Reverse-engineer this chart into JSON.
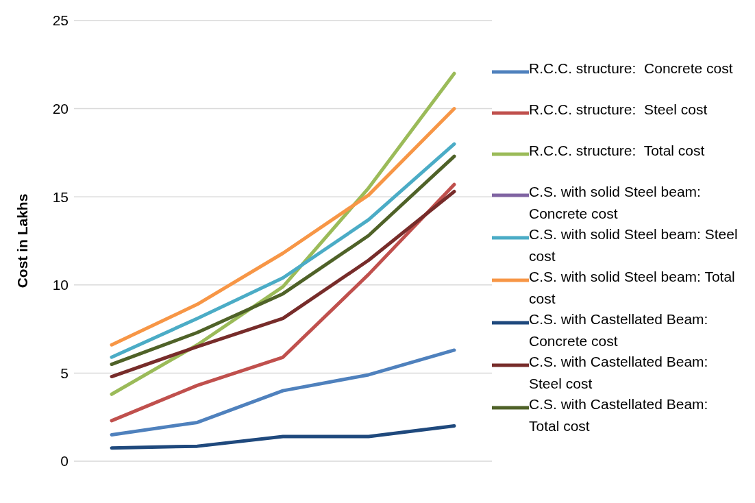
{
  "chart_data": {
    "type": "line",
    "ylabel": "Cost in Lakhs",
    "categories": [
      null,
      null,
      null,
      null,
      null
    ],
    "ylim": [
      0,
      25
    ],
    "yticks": [
      0,
      5,
      10,
      15,
      20,
      25
    ],
    "grid": "y",
    "legend": "right",
    "tick_labels": "y",
    "marker": "none",
    "line_style": "solid",
    "series": [
      {
        "name": "R.C.C. structure:  Concrete cost",
        "color": "#4f81bd",
        "values": [
          1.5,
          2.2,
          4.0,
          4.9,
          6.3
        ]
      },
      {
        "name": "R.C.C. structure:  Steel cost",
        "color": "#c0504d",
        "values": [
          2.3,
          4.3,
          5.9,
          10.6,
          15.7
        ]
      },
      {
        "name": "R.C.C. structure:  Total cost",
        "color": "#9bbb59",
        "values": [
          3.8,
          6.6,
          9.9,
          15.5,
          22.0
        ]
      },
      {
        "name": "C.S. with solid Steel beam: Concrete cost",
        "color": "#8064a2",
        "values": [
          null,
          null,
          null,
          null,
          null
        ]
      },
      {
        "name": "C.S. with solid Steel beam: Steel cost",
        "color": "#4bacc6",
        "values": [
          5.9,
          8.1,
          10.4,
          13.7,
          18.0
        ]
      },
      {
        "name": "C.S. with solid Steel beam: Total cost",
        "color": "#f79646",
        "values": [
          6.6,
          8.9,
          11.8,
          15.1,
          20.0
        ]
      },
      {
        "name": "C.S. with Castellated Beam: Concrete cost",
        "color": "#1f497d",
        "values": [
          0.75,
          0.85,
          1.4,
          1.4,
          2.0
        ]
      },
      {
        "name": "C.S. with Castellated Beam: Steel cost",
        "color": "#772c2a",
        "values": [
          4.8,
          6.5,
          8.1,
          11.4,
          15.3
        ]
      },
      {
        "name": "C.S. with Castellated Beam: Total cost",
        "color": "#4f6228",
        "values": [
          5.5,
          7.3,
          9.5,
          12.8,
          17.3
        ]
      }
    ]
  }
}
